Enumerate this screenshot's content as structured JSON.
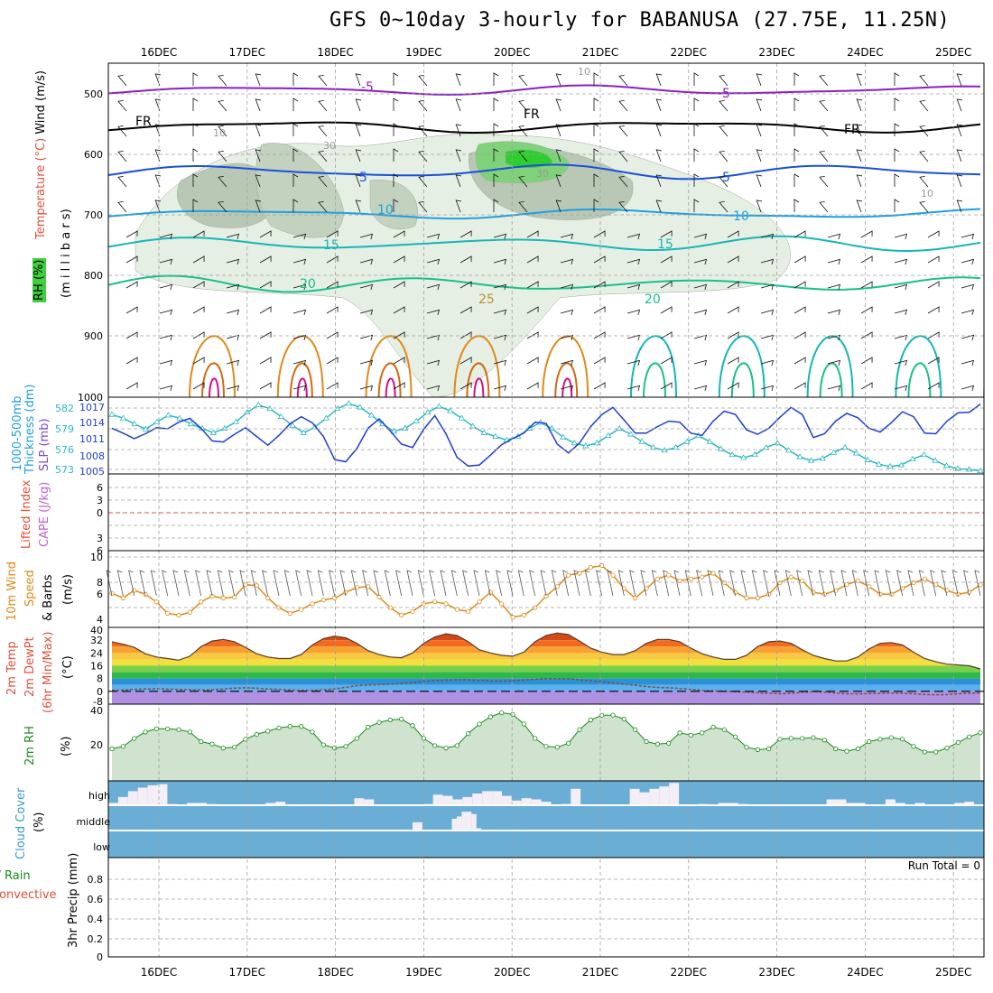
{
  "title": "GFS 0~10day 3-hourly for BABANUSA (27.75E, 11.25N)",
  "date_labels": [
    "16DEC",
    "17DEC",
    "18DEC",
    "19DEC",
    "20DEC",
    "21DEC",
    "22DEC",
    "23DEC",
    "24DEC",
    "25DEC"
  ],
  "colors": {
    "purple": "#8a1fbf",
    "black": "#000000",
    "blue": "#1a4fd8",
    "lightblue": "#1ea0e0",
    "cyan": "#16b6b8",
    "green": "#18c08a",
    "orange": "#e08a1a",
    "darkorange": "#d06a10",
    "magenta": "#d0108a",
    "slp": "#1f3fd0",
    "thickness": "#2ab8c0",
    "cloud": "#6aaed6",
    "rh2m_line": "#1a8a1a",
    "rh2m_fill": "#cfe3cf",
    "dewpt": "#8a4a3a",
    "grid": "#a0a0a0"
  },
  "panels": {
    "upper": {
      "label_wind": "Wind (m/s)",
      "label_temp": "Temperature (°C)",
      "label_rh": "RH (%)",
      "label_mb": "(m i l l i b a r s)",
      "ticks": [
        "500",
        "600",
        "700",
        "800",
        "900",
        "1000"
      ],
      "contour_labels": [
        "-5",
        "-5",
        "FR",
        "FR",
        "FR",
        "5",
        "5",
        "10",
        "10",
        "15",
        "15",
        "20",
        "20",
        "25",
        "10",
        "10",
        "30",
        "30",
        "10"
      ]
    },
    "slp": {
      "label_thick": "Thickness (dm)",
      "label_thick2": "1000-500mb",
      "label_slp": "SLP (mb)",
      "thick_ticks": [
        "582",
        "579",
        "576",
        "573"
      ],
      "slp_ticks": [
        "1017",
        "1014",
        "1011",
        "1008",
        "1005"
      ]
    },
    "cape": {
      "label_li": "Lifted Index",
      "label_cape": "CAPE (J/kg)",
      "ticks": [
        "6",
        "3",
        "0",
        "3",
        "6"
      ]
    },
    "wind10": {
      "label1": "10m Wind",
      "label2": "Speed",
      "label3": "& Barbs",
      "unit": "(m/s)",
      "ticks": [
        "10",
        "8",
        "6",
        "4"
      ]
    },
    "temp2m": {
      "label1": "2m Temp",
      "label2": "2m DewPt",
      "label3": "(6hr Min/Max)",
      "unit": "(°C)",
      "ticks": [
        "40",
        "32",
        "24",
        "16",
        "8",
        "0",
        "-8"
      ]
    },
    "rh2m": {
      "label": "2m RH",
      "unit": "(%)",
      "ticks": [
        "40",
        "20"
      ]
    },
    "cloud": {
      "label": "Cloud Cover",
      "unit": "(%)",
      "levels": [
        "high",
        "middle",
        "low"
      ]
    },
    "precip": {
      "label1": "Total / Rain",
      "label2": "Convective",
      "axis": "3hr Precip (mm)",
      "run_total": "Run Total = 0",
      "ticks": [
        "0.8",
        "0.6",
        "0.4",
        "0.2",
        "0"
      ]
    }
  },
  "chart_data": [
    {
      "type": "line",
      "name": "1000-500mb Thickness (dm)",
      "unit": "dm",
      "ylim": [
        573,
        582
      ],
      "values": [
        580.5,
        580.0,
        579.2,
        578.5,
        579.5,
        580.4,
        580.0,
        579.2,
        578.6,
        578.0,
        578.6,
        579.5,
        580.8,
        581.8,
        581.3,
        580.2,
        579.0,
        578.0,
        578.8,
        580.0,
        581.3,
        582.0,
        581.5,
        580.4,
        579.2,
        578.2,
        578.6,
        579.6,
        580.8,
        581.6,
        581.0,
        580.0,
        578.9,
        578.0,
        577.5,
        577.0,
        577.5,
        578.6,
        579.4,
        578.6,
        577.4,
        576.6,
        576.2,
        576.6,
        577.6,
        578.6,
        577.8,
        576.8,
        576.0,
        575.6,
        576.0,
        576.8,
        577.6,
        576.8,
        575.8,
        575.0,
        574.6,
        575.0,
        576.0,
        576.6,
        575.6,
        574.7,
        574.2,
        574.5,
        575.3,
        576.0,
        575.2,
        574.3,
        573.7,
        573.4,
        573.6,
        574.4,
        575.0,
        574.2,
        573.5,
        573.1,
        573.0,
        572.8
      ]
    },
    {
      "type": "line",
      "name": "SLP (mb)",
      "unit": "mb",
      "ylim": [
        1005,
        1017
      ],
      "values": [
        1012.5,
        1011.6,
        1010.6,
        1011.5,
        1012.6,
        1012.4,
        1013.6,
        1014.3,
        1012.5,
        1010.2,
        1010.0,
        1011.4,
        1012.6,
        1011.0,
        1009.4,
        1011.2,
        1013.3,
        1014.6,
        1013.5,
        1011.0,
        1006.8,
        1006.4,
        1008.8,
        1012.5,
        1014.2,
        1012.0,
        1009.6,
        1009.0,
        1012.3,
        1014.8,
        1011.5,
        1007.2,
        1005.6,
        1005.8,
        1007.6,
        1009.5,
        1010.6,
        1011.6,
        1013.6,
        1013.4,
        1009.6,
        1008.0,
        1009.8,
        1012.8,
        1015.0,
        1016.3,
        1014.0,
        1011.6,
        1011.6,
        1012.8,
        1013.8,
        1013.6,
        1011.6,
        1011.2,
        1013.8,
        1015.6,
        1015.0,
        1012.2,
        1011.4,
        1012.5,
        1014.5,
        1016.3,
        1015.0,
        1010.8,
        1011.5,
        1013.8,
        1015.2,
        1014.4,
        1012.5,
        1011.8,
        1013.5,
        1015.5,
        1014.6,
        1011.6,
        1011.5,
        1013.8,
        1015.3,
        1015.4,
        1016.9
      ]
    },
    {
      "type": "line",
      "name": "10m Wind Speed (m/s)",
      "unit": "m/s",
      "ylim": [
        3.4,
        10.3
      ],
      "values": [
        6.5,
        6.0,
        6.8,
        6.4,
        5.6,
        4.4,
        4.2,
        4.5,
        5.6,
        6.2,
        6.0,
        6.1,
        7.4,
        7.3,
        6.0,
        5.0,
        4.4,
        4.8,
        5.4,
        5.8,
        6.0,
        6.6,
        7.1,
        7.2,
        6.1,
        5.0,
        4.2,
        4.6,
        5.4,
        5.6,
        5.4,
        4.8,
        4.6,
        5.6,
        6.6,
        5.4,
        4.0,
        4.2,
        5.0,
        6.2,
        7.2,
        8.4,
        8.6,
        9.2,
        9.4,
        8.4,
        7.0,
        6.0,
        7.0,
        8.0,
        8.4,
        7.8,
        8.0,
        8.2,
        8.6,
        7.6,
        6.6,
        6.0,
        6.0,
        6.4,
        7.6,
        8.2,
        7.8,
        6.6,
        6.4,
        6.8,
        7.4,
        7.8,
        7.2,
        6.4,
        6.4,
        7.0,
        7.6,
        8.0,
        7.4,
        6.8,
        6.4,
        6.6,
        7.4
      ]
    },
    {
      "type": "area",
      "name": "2m Temperature (°C)",
      "unit": "°C",
      "ylim": [
        -8,
        40
      ],
      "values": [
        31,
        29.5,
        27.5,
        23.5,
        21.5,
        20.5,
        19.5,
        22,
        28,
        31.5,
        32.5,
        31,
        27.5,
        23.5,
        21.5,
        20.5,
        20.5,
        23,
        29,
        33,
        34.5,
        33.5,
        30,
        25.5,
        23,
        21.5,
        21,
        24,
        30,
        34,
        36,
        35,
        31,
        26,
        24,
        22.5,
        22,
        24.5,
        31,
        35,
        36.5,
        35.5,
        31.5,
        27,
        24.5,
        23,
        23,
        25.5,
        30,
        32.5,
        32.5,
        31,
        27,
        23.5,
        21.5,
        20,
        20,
        22.5,
        28,
        31,
        31.5,
        30,
        26,
        22.5,
        20.5,
        19,
        19,
        21.5,
        26.5,
        30,
        30.5,
        29,
        24.5,
        20.5,
        18.5,
        17,
        16.5,
        16,
        14
      ]
    },
    {
      "type": "line",
      "name": "2m DewPt (°C)",
      "unit": "°C",
      "ylim": [
        -8,
        40
      ],
      "values": [
        0.5,
        0.8,
        1.2,
        1.5,
        1.6,
        1.4,
        1.2,
        1.0,
        0.8,
        1.0,
        1.5,
        2.0,
        2.2,
        2.0,
        1.5,
        1.2,
        0.8,
        0.5,
        0.6,
        1.0,
        1.5,
        2.5,
        3.5,
        4.0,
        4.2,
        4.5,
        5.0,
        5.5,
        6.2,
        6.8,
        7.0,
        7.2,
        7.2,
        6.8,
        6.5,
        6.4,
        6.6,
        7.0,
        7.5,
        8.0,
        8.0,
        7.8,
        7.2,
        6.5,
        6.0,
        5.2,
        4.5,
        3.8,
        3.0,
        2.5,
        2.2,
        1.8,
        1.2,
        0.6,
        0.2,
        0.0,
        -0.2,
        -0.5,
        -0.8,
        -1.2,
        -1.5,
        -1.2,
        -0.6,
        -0.2,
        -0.5,
        -1.0,
        -1.5,
        -1.6,
        -1.4,
        -1.2,
        -1.0,
        -1.2,
        -1.5,
        -2.0,
        -2.2,
        -2.0,
        -1.5,
        -1.2,
        -1.0
      ]
    },
    {
      "type": "area",
      "name": "2m RH (%)",
      "unit": "%",
      "ylim": [
        0,
        40
      ],
      "values": [
        15.5,
        17,
        22,
        26,
        28,
        28,
        27.5,
        26,
        20,
        18.5,
        16,
        16.5,
        21.5,
        24.5,
        26.5,
        28.5,
        29.5,
        29.5,
        26,
        18,
        16,
        17,
        22,
        29,
        32,
        33.5,
        34,
        30,
        22,
        17.5,
        16,
        17.5,
        25,
        31,
        35.5,
        38,
        37,
        31,
        22,
        17,
        16.5,
        19,
        27.5,
        33.5,
        36.5,
        36.5,
        34,
        27.5,
        20,
        18.5,
        19,
        25.5,
        24,
        25.5,
        29,
        27.5,
        23,
        16.5,
        15,
        15.5,
        21.5,
        22,
        22,
        22.5,
        21,
        15.5,
        14,
        15.5,
        20,
        21.5,
        22.5,
        21.5,
        17,
        13.5,
        13.5,
        16,
        19.5,
        23,
        25.5
      ]
    },
    {
      "type": "bar",
      "name": "High Cloud Cover (%)",
      "unit": "%",
      "ylim": [
        0,
        100
      ],
      "values": [
        10,
        35,
        60,
        75,
        85,
        90,
        5,
        0,
        10,
        10,
        5,
        0,
        0,
        0,
        0,
        0,
        10,
        15,
        0,
        0,
        0,
        0,
        0,
        0,
        0,
        30,
        25,
        0,
        0,
        0,
        0,
        0,
        5,
        45,
        40,
        25,
        35,
        50,
        60,
        60,
        40,
        20,
        30,
        25,
        15,
        0,
        5,
        70,
        0,
        0,
        0,
        0,
        0,
        70,
        55,
        70,
        80,
        95,
        0,
        0,
        5,
        0,
        10,
        10,
        5,
        0,
        0,
        0,
        0,
        0,
        0,
        0,
        0,
        25,
        25,
        10,
        10,
        0,
        0,
        25,
        10,
        0,
        10,
        0,
        0,
        0,
        10,
        15,
        0
      ]
    },
    {
      "type": "bar",
      "name": "Middle Cloud Cover (%)",
      "unit": "%",
      "ylim": [
        0,
        100
      ],
      "values": [
        0,
        0,
        0,
        0,
        0,
        0,
        0,
        0,
        0,
        0,
        0,
        0,
        0,
        0,
        0,
        0,
        0,
        0,
        0,
        0,
        0,
        0,
        0,
        0,
        0,
        0,
        0,
        0,
        0,
        0,
        0,
        0,
        0,
        0,
        0,
        0,
        0,
        0,
        0,
        0,
        0,
        0,
        0,
        0,
        0,
        0,
        0,
        0,
        0,
        0,
        0,
        0,
        0,
        0,
        0,
        0,
        0,
        0,
        0,
        0,
        35,
        35,
        0,
        0,
        0,
        0,
        0,
        0,
        50,
        60,
        80,
        80,
        70,
        10,
        0,
        0,
        0,
        0,
        0,
        0,
        0,
        0,
        0,
        0,
        0,
        0,
        0,
        0,
        0
      ]
    },
    {
      "type": "bar",
      "name": "3hr Precip (mm)",
      "unit": "mm",
      "ylim": [
        0,
        1
      ],
      "values": [
        0,
        0,
        0,
        0,
        0,
        0,
        0,
        0,
        0,
        0,
        0,
        0,
        0,
        0,
        0,
        0,
        0,
        0,
        0,
        0,
        0,
        0,
        0,
        0,
        0,
        0,
        0,
        0,
        0,
        0,
        0,
        0,
        0,
        0,
        0,
        0,
        0,
        0,
        0,
        0,
        0,
        0,
        0,
        0,
        0,
        0,
        0,
        0,
        0,
        0,
        0,
        0,
        0,
        0,
        0,
        0,
        0,
        0,
        0,
        0,
        0,
        0,
        0,
        0,
        0,
        0,
        0,
        0,
        0,
        0,
        0,
        0,
        0,
        0,
        0,
        0,
        0,
        0,
        0
      ]
    }
  ]
}
